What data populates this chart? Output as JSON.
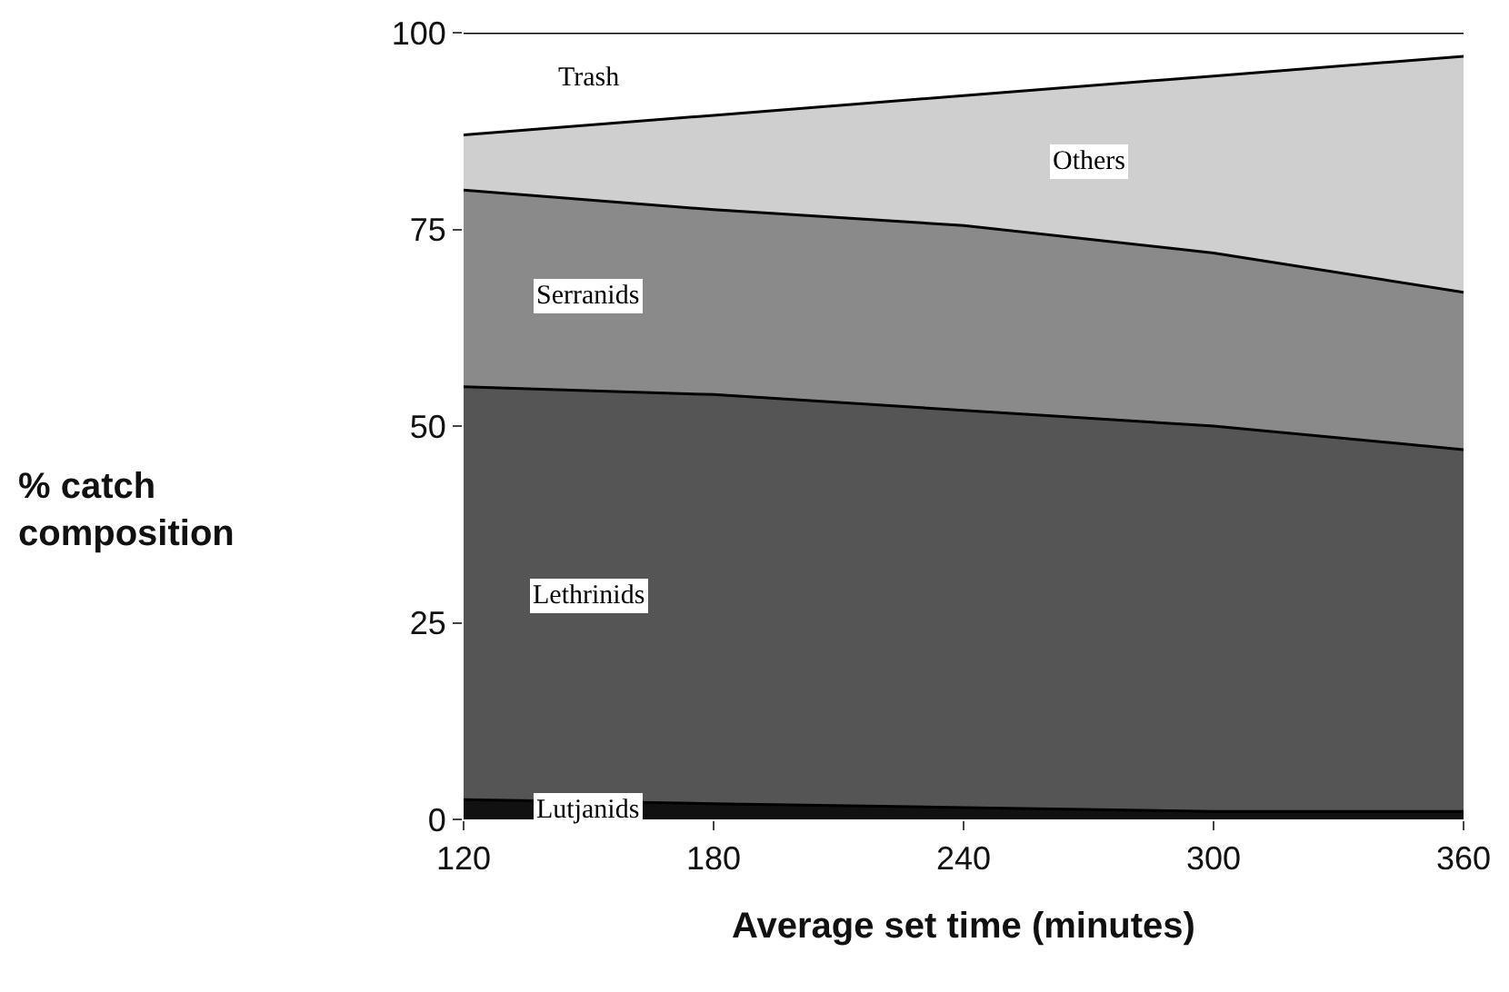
{
  "chart_data": {
    "type": "area",
    "stacked": true,
    "xlabel": "Average set time (minutes)",
    "ylabel": "% catch composition",
    "x": [
      120,
      180,
      240,
      300,
      360
    ],
    "series": [
      {
        "name": "Lutjanids",
        "color": "#111111",
        "values": [
          2.5,
          2,
          1.5,
          1,
          1
        ]
      },
      {
        "name": "Lethrinids",
        "color": "#555555",
        "values": [
          52.5,
          52,
          50.5,
          49,
          46
        ]
      },
      {
        "name": "Serranids",
        "color": "#8a8a8a",
        "values": [
          25,
          23.5,
          23.5,
          22,
          20
        ]
      },
      {
        "name": "Others",
        "color": "#cfcfcf",
        "values": [
          7,
          12,
          16.5,
          22.5,
          30
        ]
      },
      {
        "name": "Trash",
        "color": "#ffffff",
        "values": [
          13,
          10.5,
          8,
          5.5,
          3
        ]
      }
    ],
    "xlim": [
      120,
      360
    ],
    "xticks": [
      120,
      180,
      240,
      300,
      360
    ],
    "ylim": [
      0,
      100
    ],
    "yticks": [
      0,
      25,
      50,
      75,
      100
    ],
    "legend": false
  }
}
